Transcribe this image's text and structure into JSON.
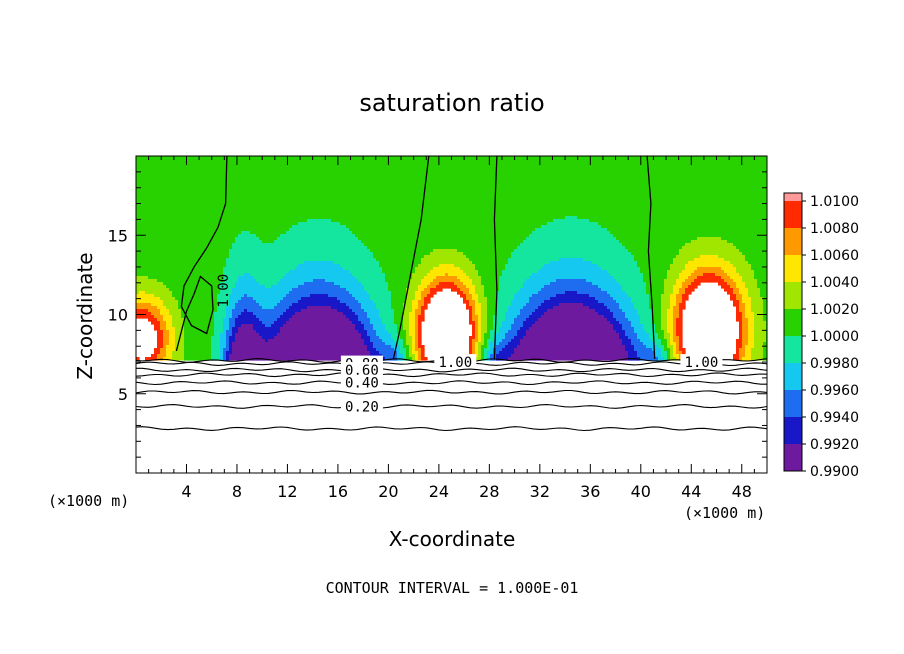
{
  "figure": {
    "title": "saturation ratio",
    "footer": "CONTOUR INTERVAL = 1.000E-01"
  },
  "chart_data": {
    "type": "heatmap",
    "title": "saturation ratio",
    "xlabel": "X-coordinate",
    "ylabel": "Z-coordinate",
    "x_unit_left": "(×1000 m)",
    "x_unit_right": "(×1000 m)",
    "xlim": [
      0,
      50
    ],
    "ylim": [
      0,
      20
    ],
    "xticks": [
      4,
      8,
      12,
      16,
      20,
      24,
      28,
      32,
      36,
      40,
      44,
      48
    ],
    "yticks": [
      5,
      10,
      15
    ],
    "colorbar": {
      "levels": [
        0.99,
        0.992,
        0.994,
        0.996,
        0.998,
        1.0,
        1.002,
        1.004,
        1.006,
        1.008,
        1.01
      ],
      "tick_labels": [
        "0.9900",
        "0.9920",
        "0.9940",
        "0.9960",
        "0.9980",
        "1.0000",
        "1.0020",
        "1.0040",
        "1.0060",
        "1.0080",
        "1.0100"
      ],
      "colors": [
        "#6e1a9e",
        "#1818c8",
        "#1e6cf0",
        "#14c8f0",
        "#14e6a0",
        "#28d200",
        "#a0e600",
        "#ffe600",
        "#ff9900",
        "#ff2a00",
        "#ff9a9a"
      ]
    },
    "contour_labels": [
      "1.00",
      "1.00",
      "1.00",
      "0.80",
      "0.60",
      "0.40",
      "0.20"
    ],
    "cloud_top_z": 7.2,
    "unity_contours": [
      {
        "label": "1.00",
        "points": [
          [
            7.2,
            20
          ],
          [
            7.1,
            17.0
          ],
          [
            6.5,
            15.5
          ],
          [
            5.6,
            14.2
          ],
          [
            4.6,
            13.0
          ],
          [
            3.8,
            11.8
          ],
          [
            3.6,
            10.5
          ],
          [
            4.4,
            9.3
          ],
          [
            5.6,
            8.8
          ],
          [
            6.1,
            10.3
          ],
          [
            6.0,
            11.8
          ],
          [
            5.1,
            12.4
          ],
          [
            4.6,
            11.3
          ],
          [
            4.0,
            10.2
          ],
          [
            3.2,
            7.7
          ]
        ]
      },
      {
        "label": "1.00",
        "points": [
          [
            23.2,
            20
          ],
          [
            22.6,
            16.0
          ],
          [
            21.7,
            12.3
          ],
          [
            20.9,
            9.0
          ],
          [
            20.4,
            7.2
          ]
        ]
      },
      {
        "label": "",
        "points": [
          [
            28.6,
            20
          ],
          [
            28.4,
            16.0
          ],
          [
            28.6,
            11.5
          ],
          [
            28.4,
            7.2
          ]
        ]
      },
      {
        "label": "1.00",
        "points": [
          [
            40.5,
            20
          ],
          [
            40.8,
            17.0
          ],
          [
            40.6,
            14.0
          ],
          [
            40.9,
            10.5
          ],
          [
            41.1,
            7.2
          ]
        ]
      }
    ],
    "lower_contours": [
      {
        "label": "0.80",
        "z": 6.9
      },
      {
        "label": "0.60",
        "z": 6.5
      },
      {
        "label": "0.40",
        "z": 5.7
      },
      {
        "label": "0.20",
        "z": 4.2
      },
      {
        "label": "",
        "z": 7.1
      },
      {
        "label": "",
        "z": 6.2
      },
      {
        "label": "",
        "z": 5.1
      },
      {
        "label": "",
        "z": 2.8
      }
    ]
  }
}
